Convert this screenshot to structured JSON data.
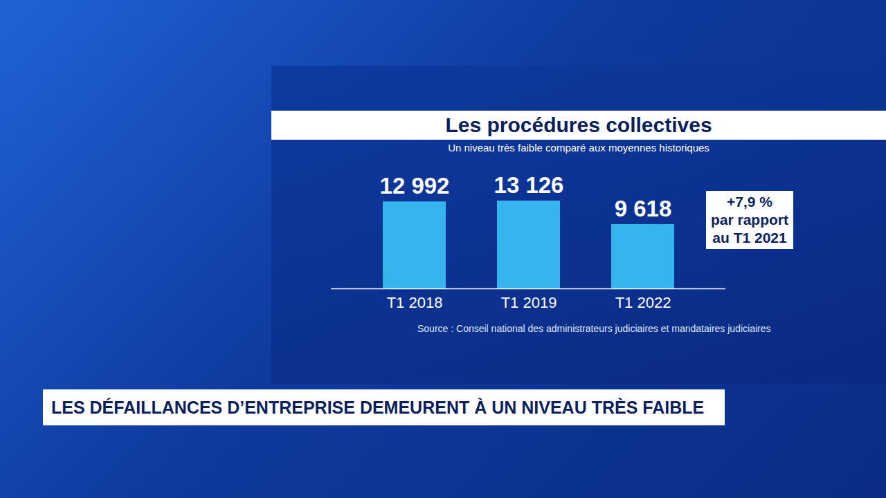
{
  "chart_data": {
    "type": "bar",
    "title": "Les procédures collectives",
    "subtitle": "Un niveau très faible comparé aux moyennes historiques",
    "categories": [
      "T1 2018",
      "T1 2019",
      "T1 2022"
    ],
    "values": [
      12992,
      13126,
      9618
    ],
    "value_labels": [
      "12 992",
      "13 126",
      "9 618"
    ],
    "data_labels": true,
    "color": "#35b4ee",
    "ylim": [
      0,
      13126
    ],
    "tick_labels": "x",
    "grid": false,
    "annotation": [
      "+7,9 %",
      "par rapport",
      "au T1 2021"
    ],
    "source": "Source : Conseil national des administrateurs judiciaires et mandataires judiciaires",
    "headline": "LES DÉFAILLANCES D’ENTREPRISE DEMEURENT À UN NIVEAU TRÈS FAIBLE"
  }
}
